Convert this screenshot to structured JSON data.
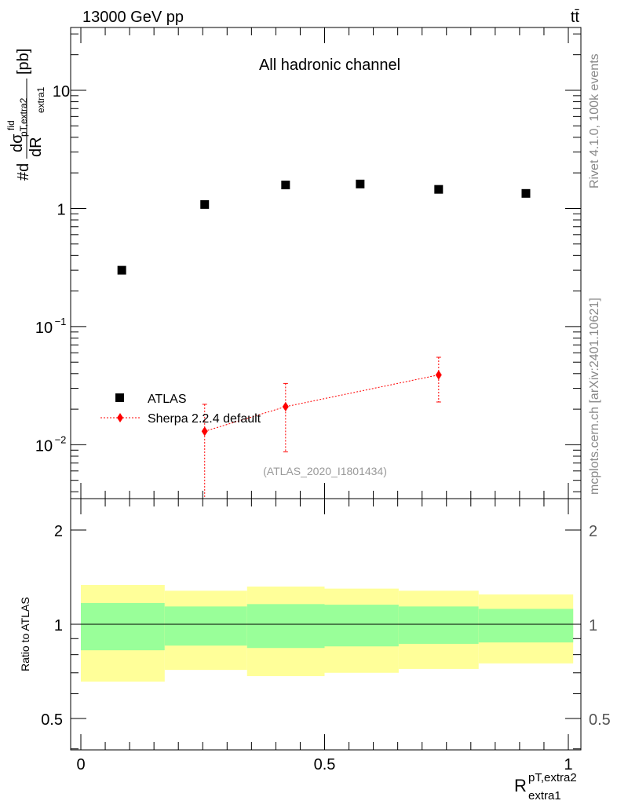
{
  "chart_data": [
    {
      "type": "scatter",
      "title_left": "13000 GeV pp",
      "title_right": "tt̄",
      "annotation": "All hadronic channel",
      "analysis_id": "(ATLAS_2020_I1801434)",
      "side_label_top": "Rivet 4.1.0,  100k events",
      "side_label_bottom": "mcplots.cern.ch [arXiv:2401.10621]",
      "ylabel": "#d dσ^fid_pT,extra2 / dR_extra1 [pb]",
      "ylabel_parts": {
        "prefix": "#d",
        "num": "dσ",
        "num_sup": "fid",
        "num_sub": "pT,extra2",
        "den": "dR",
        "den_sub": "extra1",
        "unit": "[pb]"
      },
      "yscale": "log",
      "ylim": [
        0.0035,
        34
      ],
      "yticks": [
        {
          "v": 0.01,
          "b": "10",
          "e": "−2"
        },
        {
          "v": 0.1,
          "b": "10",
          "e": "−1"
        },
        {
          "v": 1,
          "b": "1",
          "e": ""
        },
        {
          "v": 10,
          "b": "10",
          "e": ""
        }
      ],
      "xlim": [
        -0.02,
        1.02
      ],
      "legend": [
        "ATLAS",
        "Sherpa 2.2.4 default"
      ],
      "series": [
        {
          "name": "ATLAS",
          "color": "#000000",
          "x": [
            0.084,
            0.254,
            0.42,
            0.573,
            0.734,
            0.913
          ],
          "y": [
            0.3,
            1.08,
            1.58,
            1.61,
            1.45,
            1.34
          ]
        },
        {
          "name": "Sherpa 2.2.4 default",
          "color": "#ff0000",
          "x": [
            0.254,
            0.42,
            0.734
          ],
          "y": [
            0.013,
            0.021,
            0.039
          ],
          "yerr_low": [
            0.001,
            0.0087,
            0.023
          ],
          "yerr_high": [
            0.022,
            0.033,
            0.055
          ]
        }
      ]
    },
    {
      "type": "area",
      "ylabel": "Ratio to ATLAS",
      "xlabel": "R^{pT,extra2}_{extra1}",
      "xlabel_main": "R",
      "xlabel_sup": "pT,extra2",
      "xlabel_sub": "extra1",
      "yscale": "log",
      "ylim": [
        0.397,
        2.52
      ],
      "yticks": [
        "0.5",
        "1",
        "2"
      ],
      "ytick_values": [
        0.5,
        1,
        2
      ],
      "xticks": [
        "0",
        "0.5",
        "1"
      ],
      "xtick_values": [
        0,
        0.5,
        1
      ],
      "bin_edges": [
        0,
        0.172,
        0.341,
        0.5,
        0.652,
        0.816,
        1.01
      ],
      "yellow_band": {
        "color": "#ffff99",
        "upper": [
          1.335,
          1.28,
          1.32,
          1.3,
          1.28,
          1.245
        ],
        "lower": [
          0.656,
          0.715,
          0.683,
          0.7,
          0.72,
          0.75
        ]
      },
      "green_band": {
        "color": "#99ff99",
        "upper": [
          1.169,
          1.14,
          1.16,
          1.155,
          1.14,
          1.12
        ],
        "lower": [
          0.826,
          0.855,
          0.84,
          0.85,
          0.866,
          0.875
        ]
      }
    }
  ]
}
